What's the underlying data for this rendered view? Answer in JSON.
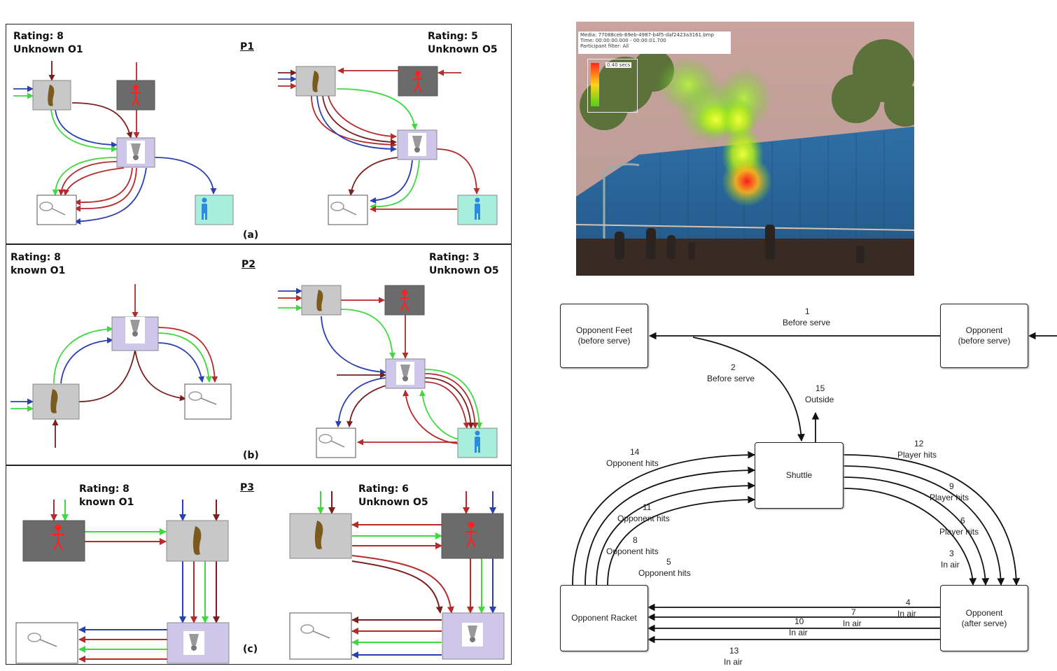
{
  "panels": [
    {
      "id": "P1",
      "caption": "(a)",
      "left_rating": "Rating: 8",
      "left_obs": "Unknown O1",
      "right_rating": "Rating: 5",
      "right_obs": "Unknown O5"
    },
    {
      "id": "P2",
      "caption": "(b)",
      "left_rating": "Rating: 8",
      "left_obs": "known O1",
      "right_rating": "Rating: 3",
      "right_obs": "Unknown O5"
    },
    {
      "id": "P3",
      "caption": "(c)",
      "left_rating": "Rating: 8",
      "left_obs": "known O1",
      "right_rating": "Rating: 6",
      "right_obs": "Unknown O5"
    }
  ],
  "heatmap": {
    "media": "Media: 77088ceb-69eb-4987-b4f5-daf2423a3161.bmp",
    "time": "Time: 00:00:00.000 - 00:00:01.700",
    "filter": "Participant filter: All",
    "legend": "0.40 secs"
  },
  "flow": {
    "nodes": {
      "feet": "Opponent Feet\n(before serve)",
      "opp_before": "Opponent\n(before serve)",
      "shuttle": "Shuttle",
      "racket": "Opponent Racket",
      "opp_after": "Opponent\n(after serve)"
    },
    "edges": [
      {
        "num": "1",
        "label": "Before serve"
      },
      {
        "num": "2",
        "label": "Before serve"
      },
      {
        "num": "15",
        "label": "Outside"
      },
      {
        "num": "14",
        "label": "Opponent hits"
      },
      {
        "num": "11",
        "label": "Opponent hits"
      },
      {
        "num": "8",
        "label": "Opponent hits"
      },
      {
        "num": "5",
        "label": "Opponent hits"
      },
      {
        "num": "12",
        "label": "Player hits"
      },
      {
        "num": "9",
        "label": "Player hits"
      },
      {
        "num": "6",
        "label": "Player hits"
      },
      {
        "num": "3",
        "label": "In air"
      },
      {
        "num": "4",
        "label": "In air"
      },
      {
        "num": "7",
        "label": "In air"
      },
      {
        "num": "10",
        "label": "In air"
      },
      {
        "num": "13",
        "label": "In air"
      }
    ]
  },
  "colors": {
    "red": "#b52a2a",
    "darkred": "#7a1e1e",
    "blue": "#2a3fb0",
    "green": "#3fd93f",
    "gray_box": "#c8c8c8",
    "dark_box": "#6b6b6b",
    "lavender": "#cfc7ea",
    "teal": "#a8eedc"
  },
  "icons": [
    "footprint-icon",
    "person-red-icon",
    "shuttlecock-icon",
    "racket-icon",
    "person-blue-icon"
  ]
}
